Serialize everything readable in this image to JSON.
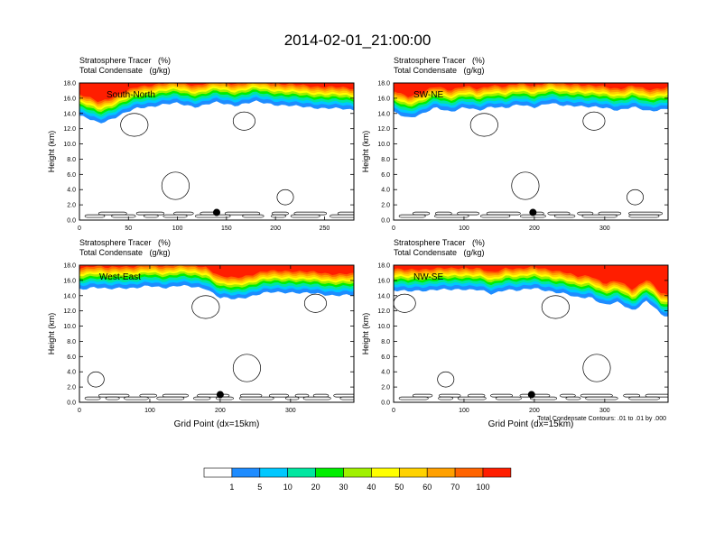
{
  "title": "2014-02-01_21:00:00",
  "colorbar": {
    "labels": [
      "1",
      "5",
      "10",
      "20",
      "30",
      "40",
      "50",
      "60",
      "70",
      "100"
    ],
    "colors": [
      "#ffffff",
      "#1e8cff",
      "#00c8ff",
      "#00e6a0",
      "#00ee00",
      "#a0f000",
      "#ffff00",
      "#ffd200",
      "#ffa000",
      "#ff6400",
      "#ff1e00"
    ]
  },
  "footnote": "Total Condensate Contours: .01 to .01 by .000",
  "chart_data": [
    {
      "type": "heatmap",
      "title": "Stratosphere Tracer   (%)",
      "subtitle": "Total Condensate   (g/kg)",
      "panel_label": "South-North",
      "xlabel": "",
      "ylabel": "Height (km)",
      "xlim": [
        0,
        280
      ],
      "ylim": [
        0,
        18
      ],
      "xticks": [
        0,
        50,
        100,
        150,
        200,
        250
      ],
      "yticks": [
        0.0,
        2.0,
        4.0,
        6.0,
        8.0,
        10.0,
        12.0,
        14.0,
        16.0,
        18.0
      ],
      "tracer_base": [
        [
          0,
          14.2
        ],
        [
          20,
          13.2
        ],
        [
          40,
          14.2
        ],
        [
          60,
          15.2
        ],
        [
          80,
          15.6
        ],
        [
          100,
          15.8
        ],
        [
          120,
          15.4
        ],
        [
          140,
          15.9
        ],
        [
          160,
          15.6
        ],
        [
          180,
          16.0
        ],
        [
          200,
          15.7
        ],
        [
          220,
          15.4
        ],
        [
          240,
          15.3
        ],
        [
          260,
          15.1
        ],
        [
          280,
          15.0
        ]
      ],
      "marker": [
        140,
        1.0
      ]
    },
    {
      "type": "heatmap",
      "title": "Stratosphere Tracer   (%)",
      "subtitle": "Total Condensate   (g/kg)",
      "panel_label": "SW-NE",
      "xlabel": "",
      "ylabel": "Height (km)",
      "xlim": [
        0,
        390
      ],
      "ylim": [
        0,
        18
      ],
      "xticks": [
        0,
        100,
        200,
        300
      ],
      "yticks": [
        0.0,
        2.0,
        4.0,
        6.0,
        8.0,
        10.0,
        12.0,
        14.0,
        16.0,
        18.0
      ],
      "tracer_base": [
        [
          0,
          14.6
        ],
        [
          20,
          14.0
        ],
        [
          40,
          14.4
        ],
        [
          60,
          15.2
        ],
        [
          80,
          14.8
        ],
        [
          100,
          15.3
        ],
        [
          120,
          14.8
        ],
        [
          140,
          15.5
        ],
        [
          160,
          15.2
        ],
        [
          180,
          15.6
        ],
        [
          200,
          15.4
        ],
        [
          220,
          15.8
        ],
        [
          240,
          15.5
        ],
        [
          260,
          15.6
        ],
        [
          280,
          15.3
        ],
        [
          300,
          15.2
        ],
        [
          320,
          15.0
        ],
        [
          340,
          15.3
        ],
        [
          360,
          14.8
        ],
        [
          390,
          15.2
        ]
      ],
      "marker": [
        198,
        1.0
      ]
    },
    {
      "type": "heatmap",
      "title": "Stratosphere Tracer   (%)",
      "subtitle": "Total Condensate   (g/kg)",
      "panel_label": "West-East",
      "xlabel": "Grid Point (dx=15km)",
      "ylabel": "Height (km)",
      "xlim": [
        0,
        390
      ],
      "ylim": [
        0,
        18
      ],
      "xticks": [
        0,
        100,
        200,
        300
      ],
      "yticks": [
        0.0,
        2.0,
        4.0,
        6.0,
        8.0,
        10.0,
        12.0,
        14.0,
        16.0,
        18.0
      ],
      "tracer_base": [
        [
          0,
          15.4
        ],
        [
          20,
          15.6
        ],
        [
          40,
          15.3
        ],
        [
          60,
          15.6
        ],
        [
          80,
          15.5
        ],
        [
          100,
          15.7
        ],
        [
          120,
          15.6
        ],
        [
          140,
          15.8
        ],
        [
          160,
          15.6
        ],
        [
          180,
          15.5
        ],
        [
          200,
          14.2
        ],
        [
          220,
          14.0
        ],
        [
          240,
          14.4
        ],
        [
          260,
          14.8
        ],
        [
          280,
          14.9
        ],
        [
          300,
          15.0
        ],
        [
          320,
          14.8
        ],
        [
          340,
          14.7
        ],
        [
          360,
          14.6
        ],
        [
          390,
          14.5
        ]
      ],
      "marker": [
        200,
        1.0
      ]
    },
    {
      "type": "heatmap",
      "title": "Stratosphere Tracer   (%)",
      "subtitle": "Total Condensate   (g/kg)",
      "panel_label": "NW-SE",
      "xlabel": "Grid Point (dx=15km)",
      "ylabel": "Height (km)",
      "xlim": [
        0,
        390
      ],
      "ylim": [
        0,
        18
      ],
      "xticks": [
        0,
        100,
        200,
        300
      ],
      "yticks": [
        0.0,
        2.0,
        4.0,
        6.0,
        8.0,
        10.0,
        12.0,
        14.0,
        16.0,
        18.0
      ],
      "tracer_base": [
        [
          0,
          15.2
        ],
        [
          20,
          15.0
        ],
        [
          40,
          15.2
        ],
        [
          60,
          15.3
        ],
        [
          80,
          15.2
        ],
        [
          100,
          15.4
        ],
        [
          120,
          15.3
        ],
        [
          140,
          14.6
        ],
        [
          160,
          15.4
        ],
        [
          180,
          15.2
        ],
        [
          200,
          15.4
        ],
        [
          220,
          15.2
        ],
        [
          240,
          14.8
        ],
        [
          260,
          14.2
        ],
        [
          280,
          14.4
        ],
        [
          300,
          13.2
        ],
        [
          320,
          13.6
        ],
        [
          340,
          12.6
        ],
        [
          360,
          13.8
        ],
        [
          380,
          12.0
        ],
        [
          390,
          11.8
        ]
      ],
      "marker": [
        196,
        1.0
      ]
    }
  ]
}
